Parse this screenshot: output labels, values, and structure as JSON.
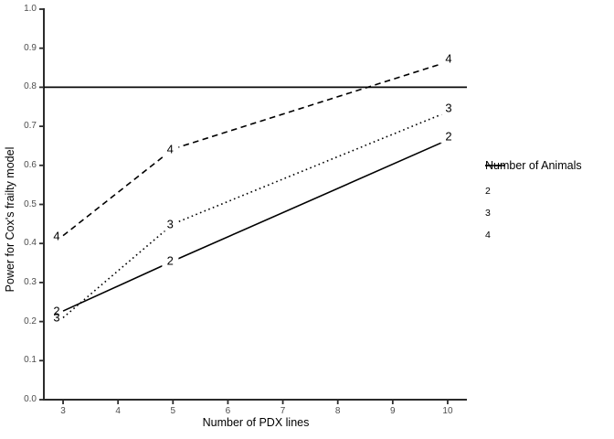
{
  "figure": {
    "background": "#ffffff"
  },
  "chart_data": {
    "type": "line",
    "title": "",
    "xlabel": "Number of PDX lines",
    "ylabel": "Power for Cox's frailty model",
    "x": [
      3,
      5,
      10
    ],
    "series": [
      {
        "name": "2",
        "linetype": "solid",
        "color": "#000000",
        "values": [
          0.227,
          0.355,
          0.665
        ]
      },
      {
        "name": "3",
        "linetype": "dotted",
        "color": "#000000",
        "values": [
          0.21,
          0.45,
          0.737
        ]
      },
      {
        "name": "4",
        "linetype": "dashed",
        "color": "#000000",
        "values": [
          0.42,
          0.642,
          0.865
        ]
      }
    ],
    "point_labels_shown": true,
    "reference_line_y": 0.8,
    "xlim": [
      2.65,
      10.35
    ],
    "ylim": [
      0,
      1
    ],
    "x_ticks": [
      "3",
      "4",
      "5",
      "6",
      "7",
      "8",
      "9",
      "10"
    ],
    "x_tick_values": [
      3,
      4,
      5,
      6,
      7,
      8,
      9,
      10
    ],
    "y_ticks": [
      "0.0",
      "0.1",
      "0.2",
      "0.3",
      "0.4",
      "0.5",
      "0.6",
      "0.7",
      "0.8",
      "0.9",
      "1.0"
    ],
    "y_tick_values": [
      0,
      0.1,
      0.2,
      0.3,
      0.4,
      0.5,
      0.6,
      0.7,
      0.8,
      0.9,
      1.0
    ],
    "grid": false,
    "legend": {
      "title": "Number of Animals",
      "position": "right",
      "entries": [
        "2",
        "3",
        "4"
      ]
    },
    "colors": {
      "series_line": "#000000",
      "reference_line": "#0a0a0a",
      "axis_line": "#2b2b2b",
      "tick_text": "#4d4d4d",
      "title_text": "#000000"
    }
  }
}
